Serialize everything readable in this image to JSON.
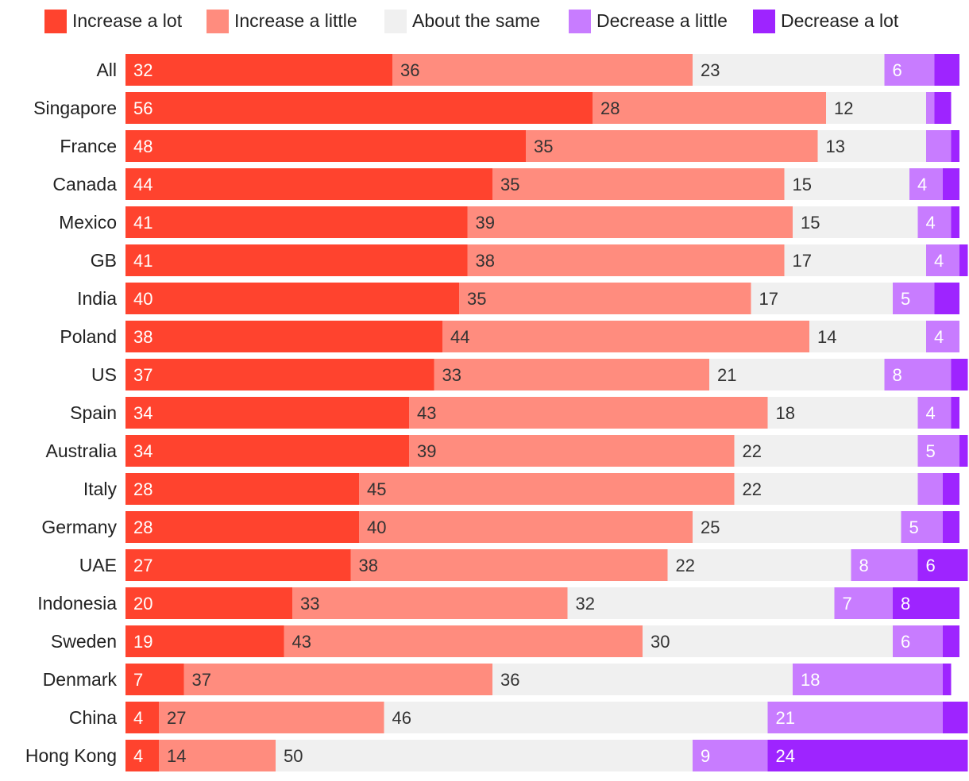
{
  "chart_data": {
    "type": "bar",
    "orientation": "horizontal",
    "stacked": true,
    "legend_position": "top",
    "categories": [
      "All",
      "Singapore",
      "France",
      "Canada",
      "Mexico",
      "GB",
      "India",
      "Poland",
      "US",
      "Spain",
      "Australia",
      "Italy",
      "Germany",
      "UAE",
      "Indonesia",
      "Sweden",
      "Denmark",
      "China",
      "Hong Kong"
    ],
    "series": [
      {
        "name": "Increase a lot",
        "color": "#ff432e",
        "label_color": "#ffffff",
        "values": [
          32,
          56,
          48,
          44,
          41,
          41,
          40,
          38,
          37,
          34,
          34,
          28,
          28,
          27,
          20,
          19,
          7,
          4,
          4
        ],
        "labels": [
          "32",
          "56",
          "48",
          "44",
          "41",
          "41",
          "40",
          "38",
          "37",
          "34",
          "34",
          "28",
          "28",
          "27",
          "20",
          "19",
          "7",
          "4",
          "4"
        ]
      },
      {
        "name": "Increase a little",
        "color": "#ff8c7e",
        "label_color": "#333333",
        "values": [
          36,
          28,
          35,
          35,
          39,
          38,
          35,
          44,
          33,
          43,
          39,
          45,
          40,
          38,
          33,
          43,
          37,
          27,
          14
        ],
        "labels": [
          "36",
          "28",
          "35",
          "35",
          "39",
          "38",
          "35",
          "44",
          "33",
          "43",
          "39",
          "45",
          "40",
          "38",
          "33",
          "43",
          "37",
          "27",
          "14"
        ]
      },
      {
        "name": "About the same",
        "color": "#f0f0f0",
        "label_color": "#333333",
        "values": [
          23,
          12,
          13,
          15,
          15,
          17,
          17,
          14,
          21,
          18,
          22,
          22,
          25,
          22,
          32,
          30,
          36,
          46,
          50
        ],
        "labels": [
          "23",
          "12",
          "13",
          "15",
          "15",
          "17",
          "17",
          "14",
          "21",
          "18",
          "22",
          "22",
          "25",
          "22",
          "32",
          "30",
          "36",
          "46",
          "50"
        ]
      },
      {
        "name": "Decrease a little",
        "color": "#c87cff",
        "label_color": "#ffffff",
        "values": [
          6,
          1,
          3,
          4,
          4,
          4,
          5,
          4,
          8,
          4,
          5,
          3,
          5,
          8,
          7,
          6,
          18,
          21,
          9
        ],
        "labels": [
          "6",
          "",
          "",
          "4",
          "4",
          "4",
          "5",
          "4",
          "8",
          "4",
          "5",
          "",
          "5",
          "8",
          "7",
          "6",
          "18",
          "21",
          "9"
        ]
      },
      {
        "name": "Decrease a lot",
        "color": "#9e24ff",
        "label_color": "#ffffff",
        "values": [
          3,
          2,
          1,
          2,
          1,
          1,
          3,
          0,
          2,
          1,
          1,
          2,
          2,
          6,
          8,
          2,
          1,
          3,
          24
        ],
        "labels": [
          "",
          "",
          "",
          "",
          "",
          "",
          "",
          "",
          "",
          "",
          "",
          "",
          "",
          "6",
          "8",
          "",
          "",
          "",
          "24"
        ]
      }
    ],
    "xlim": [
      0,
      100
    ],
    "title": "",
    "xlabel": "",
    "ylabel": ""
  }
}
